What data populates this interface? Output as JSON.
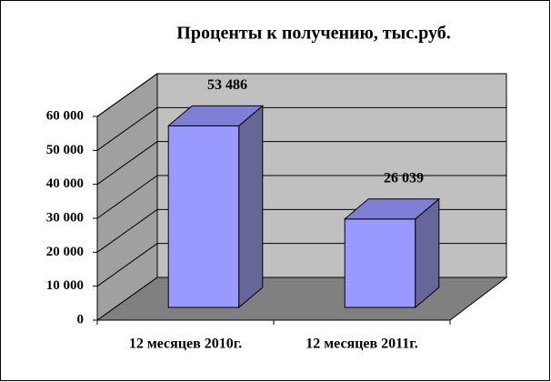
{
  "chart_data": {
    "type": "bar3d",
    "title": "Проценты к получению, тыс.руб.",
    "categories": [
      "12 месяцев 2010г.",
      "12 месяцев 2011г."
    ],
    "values": [
      53486,
      26039
    ],
    "value_labels": [
      "53 486",
      "26 039"
    ],
    "color": "#9999ff",
    "ylim": [
      0,
      60000
    ],
    "yticks": [
      0,
      {
        "value": 10000,
        "label": "10 000"
      },
      {
        "value": 20000,
        "label": "20 000"
      },
      {
        "value": 30000,
        "label": "30 000"
      },
      {
        "value": 40000,
        "label": "40 000"
      },
      {
        "value": 50000,
        "label": "50 000"
      },
      {
        "value": 60000,
        "label": "60 000"
      }
    ],
    "grid": true
  }
}
